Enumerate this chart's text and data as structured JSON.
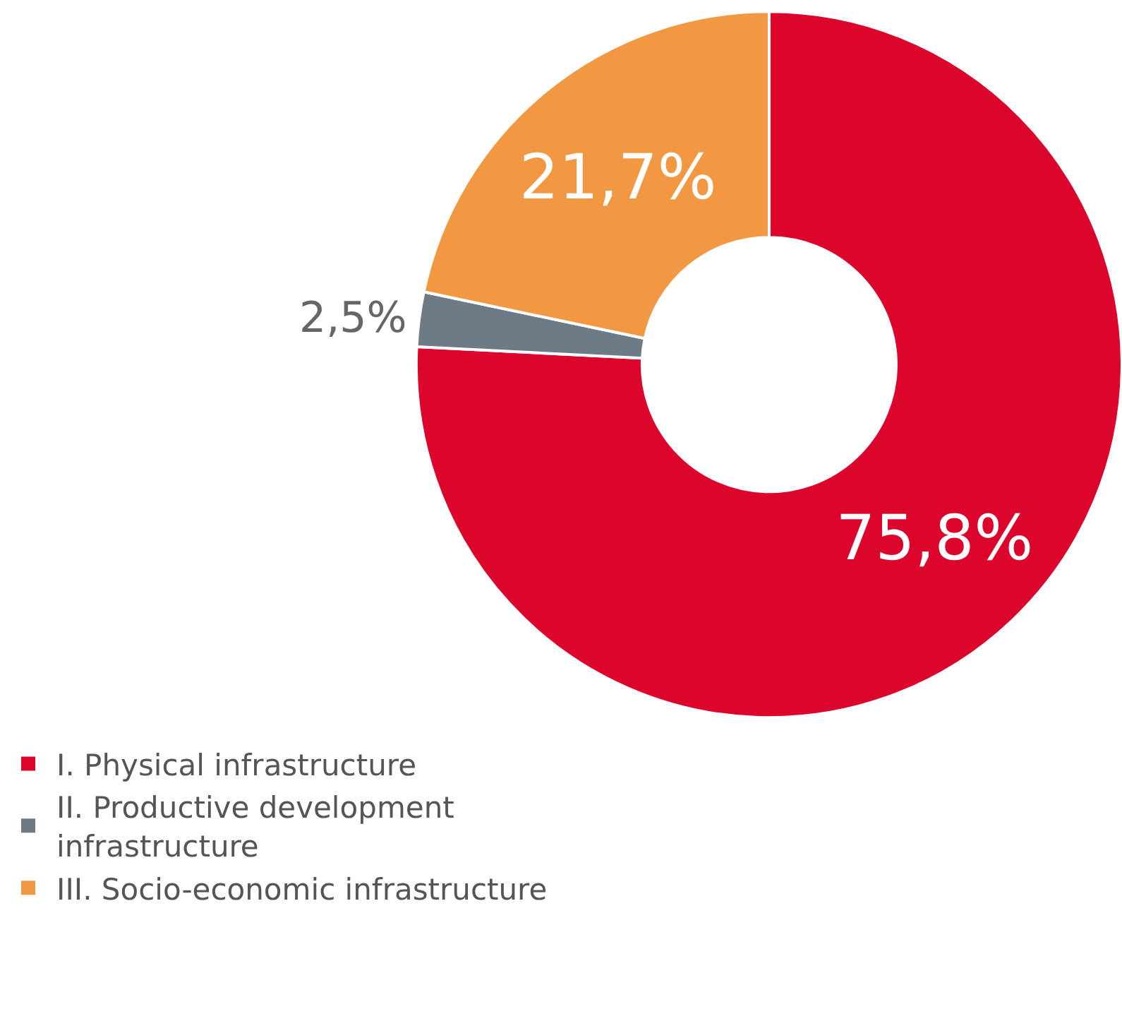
{
  "chart_data": {
    "type": "donut",
    "categories": [
      "I. Physical infrastructure",
      "II. Productive development infrastructure",
      "III. Socio-economic infrastructure"
    ],
    "values": [
      75.8,
      2.5,
      21.7
    ],
    "colors": [
      "#dc062d",
      "#6c7b85",
      "#f39842"
    ],
    "value_labels": [
      "75,8%",
      "2,5%",
      "21,7%"
    ],
    "legend": "bottom left"
  }
}
